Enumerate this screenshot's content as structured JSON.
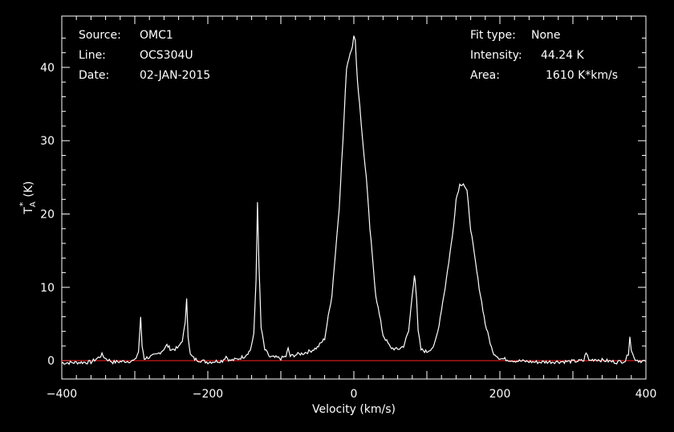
{
  "header_left": {
    "source_label": "Source:",
    "source_value": "OMC1",
    "line_label": "Line:",
    "line_value": "OCS304U",
    "date_label": "Date:",
    "date_value": "02-JAN-2015"
  },
  "header_right": {
    "fit_label": "Fit type:",
    "fit_value": "None",
    "intensity_label": "Intensity:",
    "intensity_value": "44.24 K",
    "area_label": "Area:",
    "area_value": "1610 K*km/s"
  },
  "colors": {
    "background": "#000000",
    "trace": "#ffffff",
    "baseline": "#ff2020",
    "axes": "#ffffff"
  },
  "chart_data": {
    "type": "line",
    "xlabel": "Velocity (km/s)",
    "ylabel_main": "T",
    "ylabel_sup": "*",
    "ylabel_sub": "A",
    "ylabel_unit": "(K)",
    "xlim": [
      -400,
      400
    ],
    "ylim": [
      -2.5,
      47
    ],
    "xticks": [
      -400,
      -200,
      0,
      200,
      400
    ],
    "xtick_labels": [
      "−400",
      "−200",
      "0",
      "200",
      "400"
    ],
    "yticks": [
      0,
      10,
      20,
      30,
      40
    ],
    "ytick_labels": [
      "0",
      "10",
      "20",
      "30",
      "40"
    ],
    "baseline": 0,
    "series": [
      {
        "x": [
          -400,
          -360,
          -350,
          -345,
          -340,
          -330,
          -300,
          -295,
          -292,
          -290,
          -287,
          -280,
          -270,
          -262,
          -256,
          -250,
          -245,
          -240,
          -235,
          -231,
          -229,
          -227,
          -224,
          -218,
          -200,
          -180,
          -175,
          -170,
          -160,
          -150,
          -142,
          -137,
          -134,
          -132,
          -130,
          -127,
          -122,
          -115,
          -105,
          -100,
          -93,
          -90,
          -87,
          -80,
          -70,
          -60,
          -50,
          -40,
          -30,
          -25,
          -20,
          -15,
          -10,
          -5,
          -2,
          0,
          2,
          5,
          8,
          12,
          17,
          22,
          30,
          40,
          50,
          60,
          68,
          75,
          80,
          83,
          84,
          86,
          88,
          92,
          100,
          110,
          115,
          125,
          135,
          140,
          145,
          150,
          155,
          160,
          165,
          170,
          180,
          190,
          200,
          220,
          250,
          300,
          315,
          318,
          322,
          330,
          360,
          372,
          376,
          378,
          380,
          384,
          390,
          400
        ],
        "y": [
          -0.3,
          -0.2,
          0.4,
          0.8,
          0.3,
          -0.2,
          0,
          1.2,
          5.8,
          2,
          0.3,
          0.5,
          0.8,
          1.4,
          2.1,
          1.5,
          1.6,
          1.8,
          2.8,
          5,
          8.6,
          3.5,
          0.8,
          0.2,
          -0.2,
          0,
          0.6,
          0,
          0.2,
          0.6,
          1.4,
          3.5,
          11,
          21.8,
          13,
          4.5,
          1.5,
          0.5,
          0.4,
          0.3,
          0.6,
          1.6,
          0.6,
          0.8,
          1,
          1.3,
          1.8,
          3,
          9,
          15,
          21,
          30,
          40,
          42,
          43,
          44.2,
          43.5,
          38,
          35,
          30,
          25,
          18,
          9,
          3.5,
          1.8,
          1.5,
          2,
          4,
          9,
          11.8,
          11,
          8,
          4,
          1.5,
          1.2,
          2,
          4,
          10,
          17,
          22,
          24,
          24.2,
          23,
          18,
          14.5,
          11,
          5,
          1.2,
          0.3,
          0,
          -0.2,
          -0.1,
          0,
          1.2,
          0,
          0.2,
          -0.2,
          0,
          1,
          3.5,
          1.5,
          0.3,
          0,
          -0.1
        ]
      }
    ]
  }
}
